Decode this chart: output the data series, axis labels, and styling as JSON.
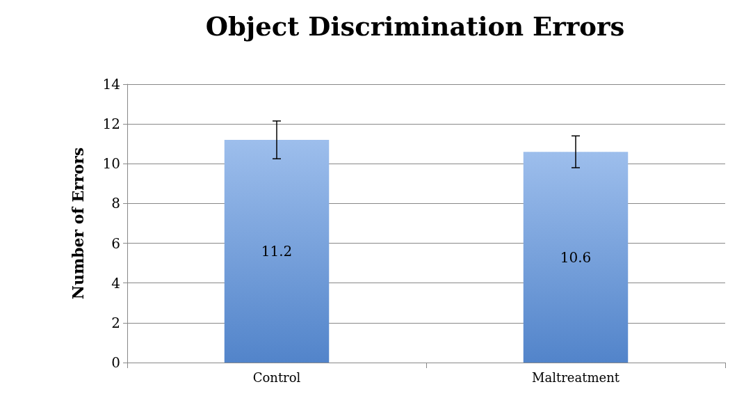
{
  "chart_data": {
    "type": "bar",
    "title": "Object Discrimination Errors",
    "ylabel": "Number of Errors",
    "categories": [
      "Control",
      "Maltreatment"
    ],
    "values": [
      11.2,
      10.6
    ],
    "errors": [
      0.95,
      0.8
    ],
    "color": "#5b93e0",
    "ylim": [
      0,
      14
    ],
    "yticks": [
      0,
      2,
      4,
      6,
      8,
      10,
      12,
      14
    ],
    "grid": "y",
    "data_labels": true
  }
}
